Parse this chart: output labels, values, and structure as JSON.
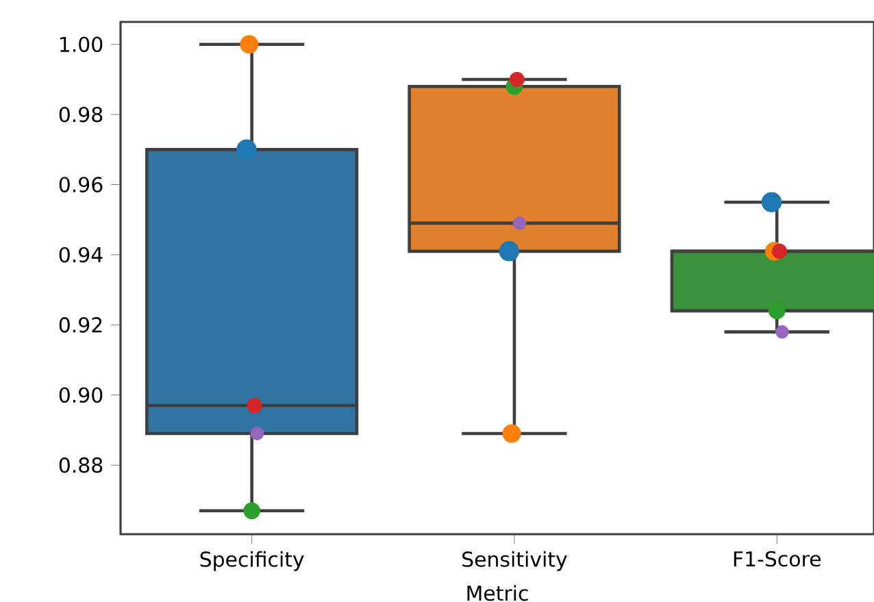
{
  "chart_data": {
    "type": "box",
    "xlabel": "Metric",
    "categories": [
      "Specificity",
      "Sensitivity",
      "F1-Score"
    ],
    "colors": [
      "#3274a1",
      "#e1812c",
      "#3a923a"
    ],
    "boxes": [
      {
        "low": 0.867,
        "q1": 0.889,
        "median": 0.897,
        "q3": 0.97,
        "high": 1.0
      },
      {
        "low": 0.889,
        "q1": 0.941,
        "median": 0.949,
        "q3": 0.988,
        "high": 0.99
      },
      {
        "low": 0.918,
        "q1": 0.924,
        "median": 0.941,
        "q3": 0.941,
        "high": 0.955
      }
    ],
    "series": [
      {
        "type": "scatter",
        "color": "#1f77b4",
        "x": [
          "Specificity",
          "Sensitivity",
          "F1-Score"
        ],
        "values": [
          0.97,
          0.941,
          0.955
        ]
      },
      {
        "type": "scatter",
        "color": "#ff7f0e",
        "x": [
          "Specificity",
          "Sensitivity",
          "F1-Score"
        ],
        "values": [
          1.0,
          0.889,
          0.941
        ]
      },
      {
        "type": "scatter",
        "color": "#2ca02c",
        "x": [
          "Specificity",
          "Sensitivity",
          "F1-Score"
        ],
        "values": [
          0.867,
          0.988,
          0.924
        ]
      },
      {
        "type": "scatter",
        "color": "#d62728",
        "x": [
          "Specificity",
          "Sensitivity",
          "F1-Score"
        ],
        "values": [
          0.897,
          0.99,
          0.941
        ]
      },
      {
        "type": "scatter",
        "color": "#9467bd",
        "x": [
          "Specificity",
          "Sensitivity",
          "F1-Score"
        ],
        "values": [
          0.889,
          0.949,
          0.918
        ]
      }
    ],
    "ylim": [
      0.8603,
      1.0064
    ],
    "yticks": [
      {
        "value": 0.88,
        "label": "0.88"
      },
      {
        "value": 0.9,
        "label": "0.90"
      },
      {
        "value": 0.92,
        "label": "0.92"
      },
      {
        "value": 0.94,
        "label": "0.94"
      },
      {
        "value": 0.96,
        "label": "0.96"
      },
      {
        "value": 0.98,
        "label": "0.98"
      },
      {
        "value": 1.0,
        "label": "1.00"
      }
    ],
    "grid": false
  }
}
